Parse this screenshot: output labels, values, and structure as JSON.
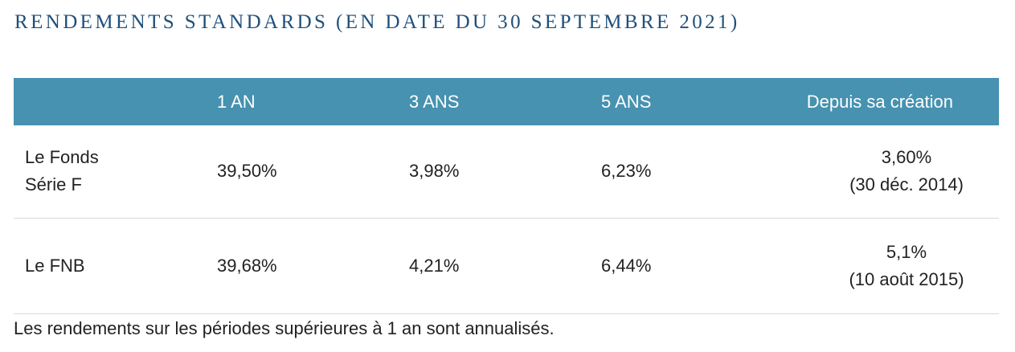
{
  "title": "RENDEMENTS STANDARDS (EN DATE DU 30 SEPTEMBRE 2021)",
  "table": {
    "headers": [
      "",
      "1 AN",
      "3 ANS",
      "5 ANS",
      "Depuis sa création"
    ],
    "rows": [
      {
        "label_line1": "Le Fonds",
        "label_line2": "Série F",
        "one_year": "39,50%",
        "three_years": "3,98%",
        "five_years": "6,23%",
        "since_value": "3,60%",
        "since_date": "(30 déc. 2014)"
      },
      {
        "label_line1": "Le FNB",
        "label_line2": "",
        "one_year": "39,68%",
        "three_years": "4,21%",
        "five_years": "6,44%",
        "since_value": "5,1%",
        "since_date": "(10 août 2015)"
      }
    ]
  },
  "footnote": "Les rendements sur les périodes supérieures à 1 an sont annualisés.",
  "colors": {
    "header_background": "#4692b0",
    "title": "#1f4f7a"
  }
}
